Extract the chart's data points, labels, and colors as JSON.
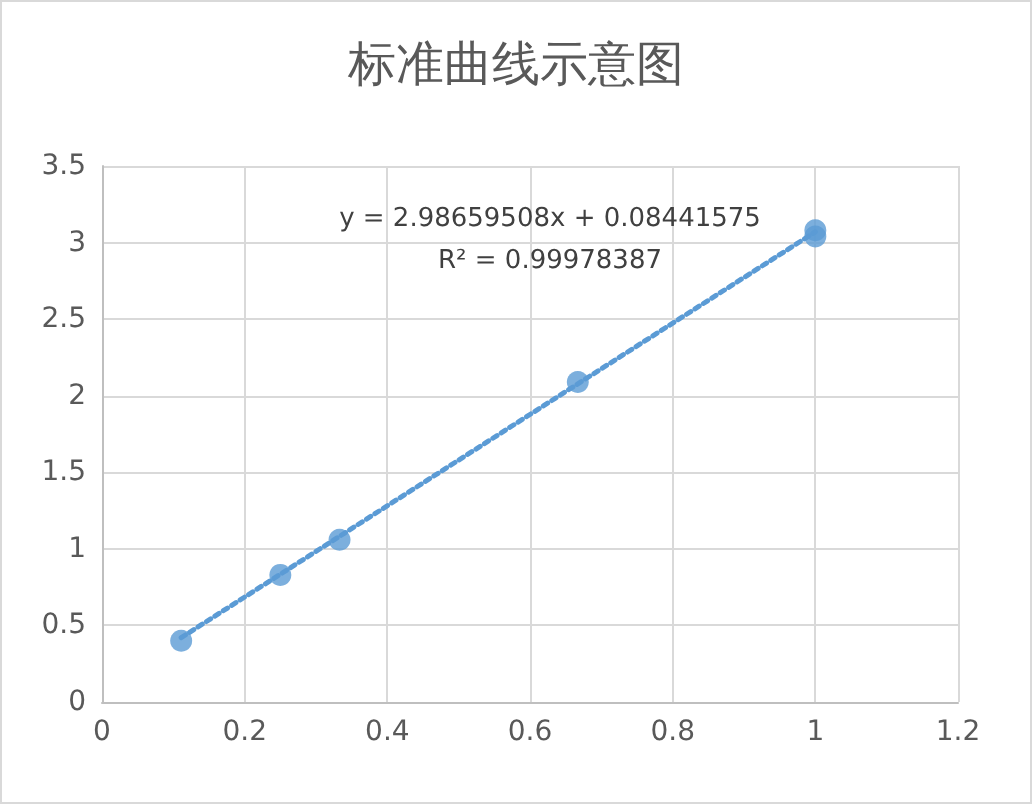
{
  "chart_data": {
    "type": "scatter",
    "title": "标准曲线示意图",
    "series": [
      {
        "type": "scatter",
        "color": "#5b9bd5",
        "x": [
          0.111,
          0.25,
          0.333,
          0.667,
          1,
          1
        ],
        "values": [
          0.4,
          0.83,
          1.06,
          2.09,
          3.04,
          3.08
        ],
        "marker": "circle"
      },
      {
        "type": "line",
        "color": "#5b9bd5",
        "x": [
          0.111,
          1
        ],
        "values": [
          0.42,
          3.07
        ],
        "line_style": "dotted",
        "marker": "none"
      }
    ],
    "annotations": [
      "y = 2.98659508x + 0.08441575",
      "R² = 0.99978387"
    ],
    "xlim": [
      0,
      1.2
    ],
    "xticks": [
      0,
      0.2,
      0.4,
      0.6,
      0.8,
      1,
      1.2
    ],
    "ylim": [
      0,
      3.5
    ],
    "yticks": [
      0,
      0.5,
      1,
      1.5,
      2,
      2.5,
      3,
      3.5
    ],
    "grid": true
  }
}
